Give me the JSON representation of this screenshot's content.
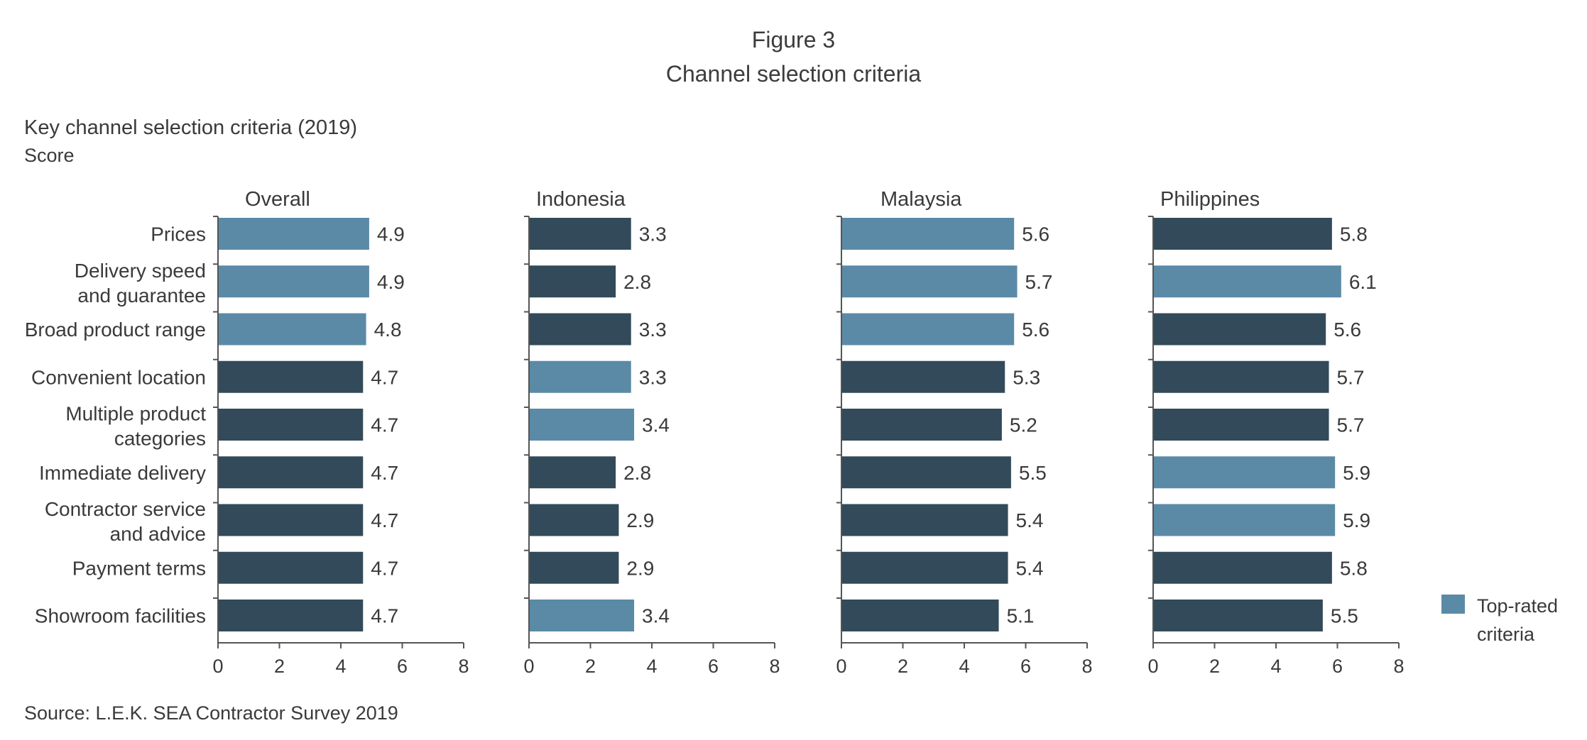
{
  "figure_label": "Figure 3",
  "figure_title": "Channel selection criteria",
  "source": "Source:  L.E.K. SEA Contractor Survey 2019",
  "colors": {
    "top_rated": "#5b8aa7",
    "other": "#324a5a",
    "axis": "#555555",
    "text": "#3a3a3a"
  },
  "legend": {
    "label_line1": "Top-rated",
    "label_line2": "criteria"
  },
  "chart_data": {
    "type": "bar",
    "orientation": "horizontal",
    "title": "Key channel selection criteria (2019)",
    "unit": "Score",
    "categories": [
      [
        "Prices"
      ],
      [
        "Delivery speed",
        "and guarantee"
      ],
      [
        "Broad product range"
      ],
      [
        "Convenient location"
      ],
      [
        "Multiple product",
        "categories"
      ],
      [
        "Immediate delivery"
      ],
      [
        "Contractor service",
        "and advice"
      ],
      [
        "Payment terms"
      ],
      [
        "Showroom facilities"
      ]
    ],
    "xlim": [
      0,
      8
    ],
    "xticks": [
      "0",
      "2",
      "4",
      "6",
      "8"
    ],
    "grid": false,
    "legend_position": "bottom-right",
    "panels": [
      {
        "name": "Overall",
        "values": [
          4.9,
          4.9,
          4.8,
          4.7,
          4.7,
          4.7,
          4.7,
          4.7,
          4.7
        ],
        "top_rated": [
          true,
          true,
          true,
          false,
          false,
          false,
          false,
          false,
          false
        ]
      },
      {
        "name": "Indonesia",
        "values": [
          3.3,
          2.8,
          3.3,
          3.3,
          3.4,
          2.8,
          2.9,
          2.9,
          3.4
        ],
        "top_rated": [
          false,
          false,
          false,
          true,
          true,
          false,
          false,
          false,
          true
        ]
      },
      {
        "name": "Malaysia",
        "values": [
          5.6,
          5.7,
          5.6,
          5.3,
          5.2,
          5.5,
          5.4,
          5.4,
          5.1
        ],
        "top_rated": [
          true,
          true,
          true,
          false,
          false,
          false,
          false,
          false,
          false
        ]
      },
      {
        "name": "Philippines",
        "values": [
          5.8,
          6.1,
          5.6,
          5.7,
          5.7,
          5.9,
          5.9,
          5.8,
          5.5
        ],
        "top_rated": [
          false,
          true,
          false,
          false,
          false,
          true,
          true,
          false,
          false
        ]
      }
    ]
  }
}
